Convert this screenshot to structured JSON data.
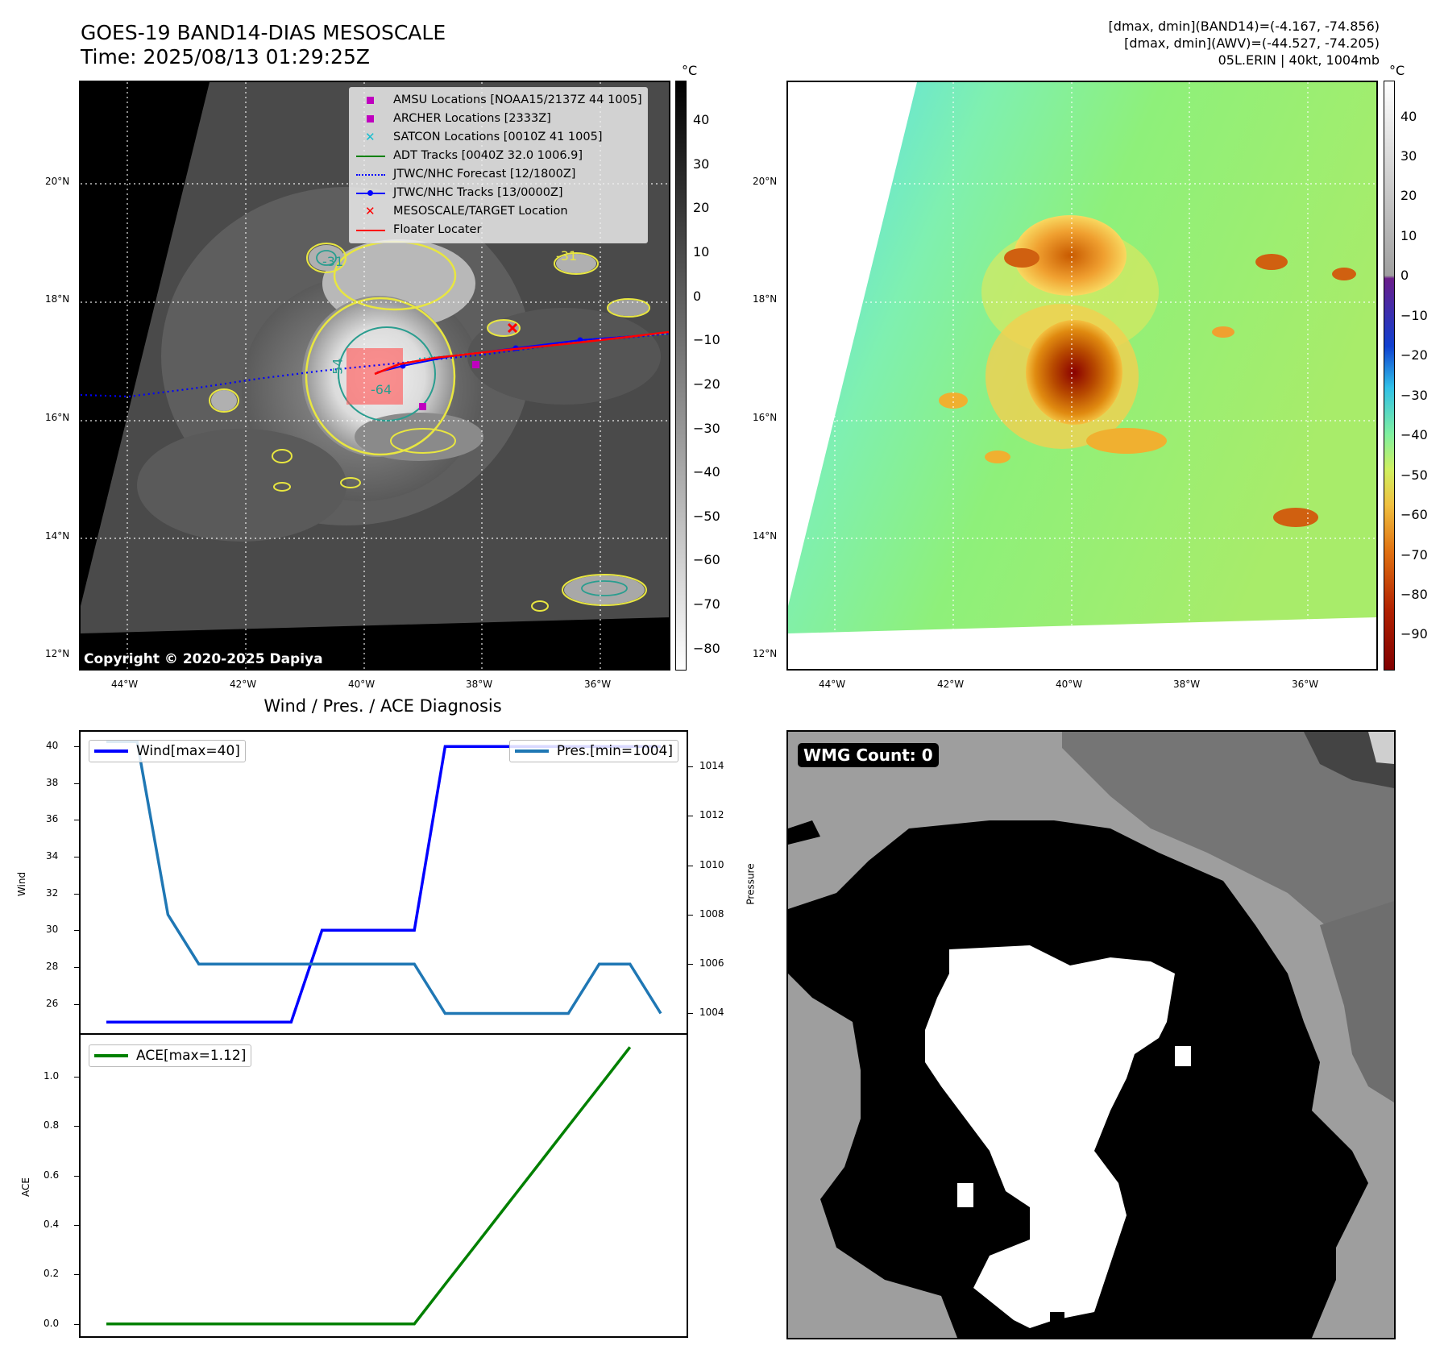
{
  "title": {
    "line1": "GOES-19 BAND14-DIAS MESOSCALE",
    "line2": "Time: 2025/08/13 01:29:25Z"
  },
  "stats": {
    "line1": "[dmax, dmin](BAND14)=(-4.167, -74.856)",
    "line2": "[dmax, dmin](AWV)=(-44.527, -74.205)",
    "line3": "05L.ERIN | 40kt, 1004mb"
  },
  "map_axes": {
    "lat_ticks": [
      "20°N",
      "18°N",
      "16°N",
      "14°N",
      "12°N"
    ],
    "lon_ticks": [
      "44°W",
      "42°W",
      "40°W",
      "38°W",
      "36°W"
    ]
  },
  "ir_panel": {
    "copyright": "Copyright © 2020-2025 Dapiya",
    "colorbar_unit": "°C",
    "colorbar_ticks": [
      "40",
      "30",
      "20",
      "10",
      "0",
      "−10",
      "−20",
      "−30",
      "−40",
      "−50",
      "−60",
      "−70",
      "−80"
    ],
    "contour_labels": [
      "-31",
      "-54",
      "-64",
      "-31"
    ],
    "legend": [
      {
        "label": "AMSU Locations [NOAA15/2137Z 44 1005]",
        "symbol": "square",
        "color": "#bf00bf"
      },
      {
        "label": "ARCHER Locations [2333Z]",
        "symbol": "square",
        "color": "#bf00bf"
      },
      {
        "label": "SATCON Locations [0010Z 41 1005]",
        "symbol": "x",
        "color": "#17becf"
      },
      {
        "label": "ADT Tracks [0040Z 32.0 1006.9]",
        "symbol": "line",
        "color": "#008000"
      },
      {
        "label": "JTWC/NHC Forecast [12/1800Z]",
        "symbol": "dotted",
        "color": "#0000ff"
      },
      {
        "label": "JTWC/NHC Tracks [13/0000Z]",
        "symbol": "line-dot",
        "color": "#0000ff"
      },
      {
        "label": "MESOSCALE/TARGET Location",
        "symbol": "x",
        "color": "#ff0000"
      },
      {
        "label": "Floater Locater",
        "symbol": "line",
        "color": "#ff0000"
      }
    ]
  },
  "wv_panel": {
    "colorbar_unit": "°C",
    "colorbar_ticks": [
      "40",
      "30",
      "20",
      "10",
      "0",
      "−10",
      "−20",
      "−30",
      "−40",
      "−50",
      "−60",
      "−70",
      "−80",
      "−90"
    ]
  },
  "diag_title": "Wind / Pres. / ACE Diagnosis",
  "wmg_label": "WMG Count: 0",
  "chart_data": [
    {
      "type": "line",
      "title": "Wind / Pres. / ACE Diagnosis",
      "ylabel": "Wind",
      "y2label": "Pressure",
      "ylim": [
        24.4,
        40.8
      ],
      "y2lim": [
        1003.2,
        1015.4
      ],
      "yticks": [
        26,
        28,
        30,
        32,
        34,
        36,
        38,
        40
      ],
      "y2ticks": [
        1004,
        1006,
        1008,
        1010,
        1012,
        1014
      ],
      "series": [
        {
          "name": "Wind[max=40]",
          "axis": "left",
          "color": "#0000ff",
          "values": [
            25,
            25,
            25,
            25,
            25,
            25,
            25,
            30,
            30,
            30,
            30,
            40,
            40,
            40,
            40,
            40,
            40,
            40,
            40
          ]
        },
        {
          "name": "Pres.[min=1004]",
          "axis": "right",
          "color": "#1f77b4",
          "values": [
            1015,
            1015,
            1008,
            1006,
            1006,
            1006,
            1006,
            1006,
            1006,
            1006,
            1006,
            1004,
            1004,
            1004,
            1004,
            1004,
            1006,
            1006,
            1004
          ]
        }
      ]
    },
    {
      "type": "line",
      "ylabel": "ACE",
      "ylim": [
        -0.05,
        1.17
      ],
      "yticks": [
        "0.0",
        "0.2",
        "0.4",
        "0.6",
        "0.8",
        "1.0"
      ],
      "series": [
        {
          "name": "ACE[max=1.12]",
          "color": "#008000",
          "values": [
            0,
            0,
            0,
            0,
            0,
            0,
            0,
            0,
            0,
            0,
            0,
            0.16,
            0.32,
            0.48,
            0.64,
            0.8,
            0.96,
            1.12
          ]
        }
      ]
    }
  ]
}
